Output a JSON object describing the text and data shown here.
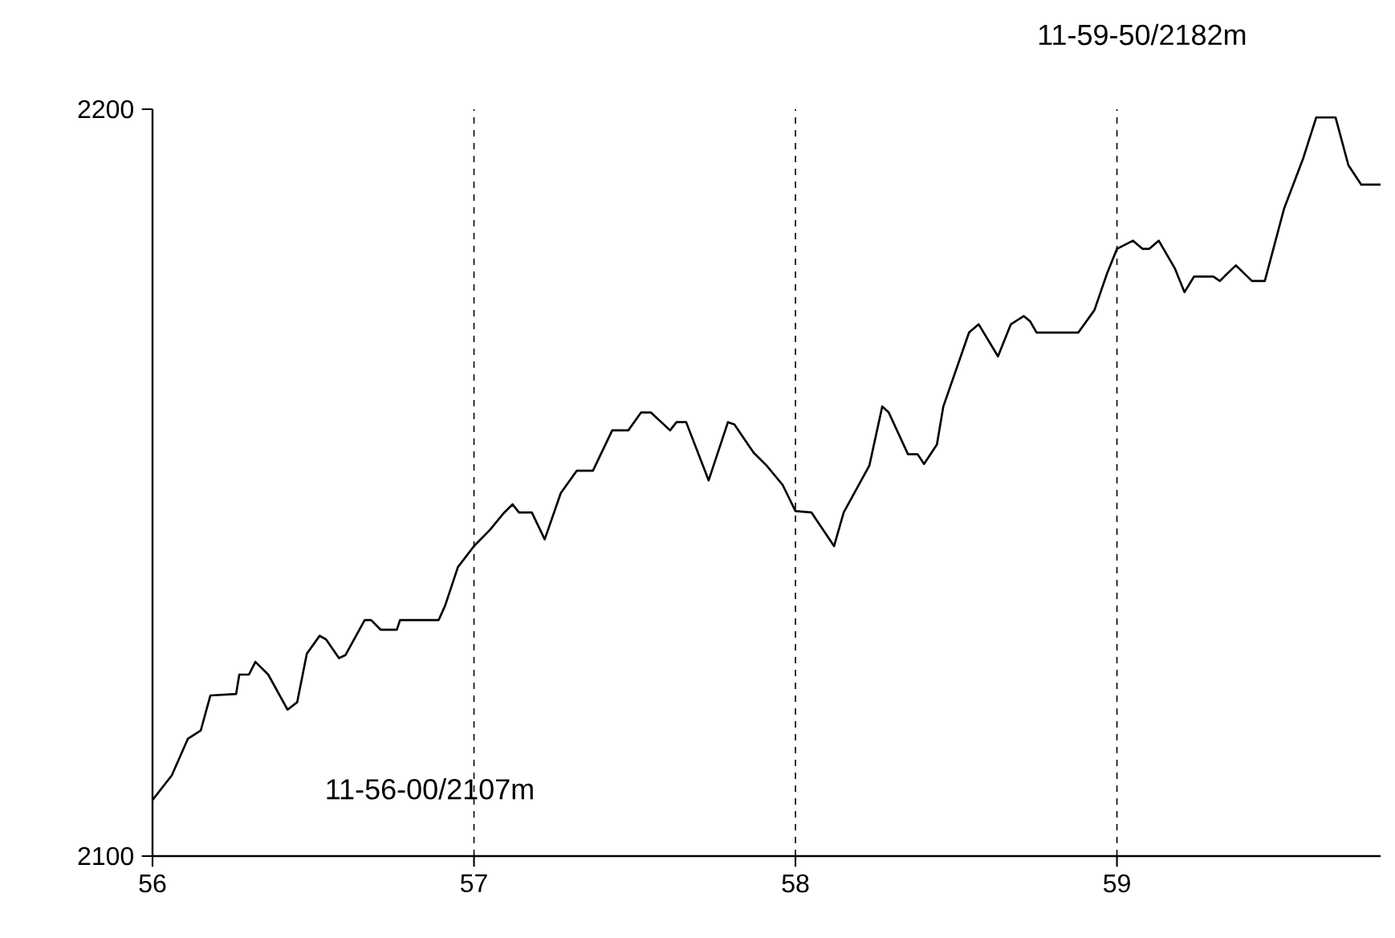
{
  "chart_data": {
    "type": "line",
    "x": [
      56.0,
      56.06,
      56.11,
      56.15,
      56.18,
      56.26,
      56.27,
      56.3,
      56.32,
      56.36,
      56.42,
      56.45,
      56.48,
      56.52,
      56.54,
      56.58,
      56.6,
      56.66,
      56.68,
      56.71,
      56.76,
      56.77,
      56.89,
      56.91,
      56.95,
      57.0,
      57.05,
      57.09,
      57.12,
      57.14,
      57.18,
      57.22,
      57.27,
      57.32,
      57.37,
      57.43,
      57.48,
      57.52,
      57.55,
      57.61,
      57.63,
      57.66,
      57.73,
      57.79,
      57.81,
      57.87,
      57.91,
      57.96,
      58.0,
      58.05,
      58.12,
      58.15,
      58.23,
      58.27,
      58.29,
      58.35,
      58.38,
      58.4,
      58.44,
      58.46,
      58.54,
      58.57,
      58.63,
      58.67,
      58.71,
      58.73,
      58.75,
      58.88,
      58.93,
      58.97,
      59.0,
      59.05,
      59.08,
      59.1,
      59.13,
      59.18,
      59.21,
      59.24,
      59.3,
      59.32,
      59.37,
      59.42,
      59.46,
      59.52,
      59.58,
      59.62,
      59.68,
      59.72,
      59.76,
      59.82
    ],
    "series": [
      {
        "color": "#000000",
        "values": [
          2107.5,
          2110.8,
          2115.7,
          2116.8,
          2121.5,
          2121.7,
          2124.3,
          2124.3,
          2126.0,
          2124.3,
          2119.6,
          2120.6,
          2127.1,
          2129.5,
          2129.0,
          2126.5,
          2126.9,
          2131.6,
          2131.6,
          2130.3,
          2130.3,
          2131.6,
          2131.6,
          2133.5,
          2138.7,
          2141.5,
          2143.7,
          2145.8,
          2147.1,
          2146.0,
          2146.0,
          2142.4,
          2148.6,
          2151.6,
          2151.6,
          2157.0,
          2157.0,
          2159.4,
          2159.4,
          2157.0,
          2158.1,
          2158.1,
          2150.3,
          2158.1,
          2157.8,
          2154.0,
          2152.3,
          2149.7,
          2146.2,
          2146.0,
          2141.5,
          2146.0,
          2152.3,
          2160.2,
          2159.4,
          2153.8,
          2153.8,
          2152.5,
          2155.1,
          2160.2,
          2170.1,
          2171.2,
          2166.9,
          2171.2,
          2172.3,
          2171.6,
          2170.1,
          2170.1,
          2173.1,
          2178.1,
          2181.3,
          2182.4,
          2181.3,
          2181.3,
          2182.4,
          2178.7,
          2175.5,
          2177.6,
          2177.6,
          2177.0,
          2179.1,
          2177.0,
          2177.0,
          2186.7,
          2193.5,
          2198.9,
          2198.9,
          2192.5,
          2189.9,
          2189.9
        ]
      }
    ],
    "xlim": [
      56,
      59.82
    ],
    "ylim": [
      2100,
      2200
    ],
    "xticks": [
      56,
      57,
      58,
      59
    ],
    "yticks": [
      2100,
      2200
    ],
    "grid": "x",
    "line_style": "solid",
    "marker": "none",
    "annotations": [
      "11-56-00/2107m",
      "11-59-50/2182m"
    ]
  }
}
